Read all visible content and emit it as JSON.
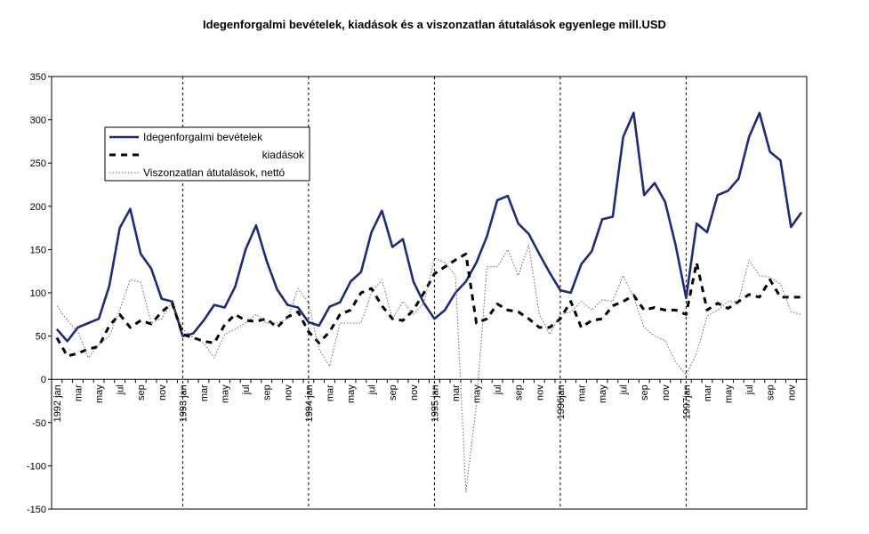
{
  "chart_data": {
    "type": "line",
    "title": "Idegenforgalmi bevételek, kiadások és a viszonzatlan átutalások egyenlege mill.USD",
    "xlabel": "",
    "ylabel": "",
    "ylim": [
      -150,
      350
    ],
    "yticks": [
      350,
      300,
      250,
      200,
      150,
      100,
      50,
      0,
      -50,
      -100,
      -150
    ],
    "grid": false,
    "legend_position": "upper-left",
    "x_tick_labels": [
      "1992 jan",
      "mar",
      "may",
      "jul",
      "sep",
      "nov",
      "1993 jan",
      "mar",
      "may",
      "jul",
      "sep",
      "nov",
      "1994 jan",
      "mar",
      "may",
      "jul",
      "sep",
      "nov",
      "1995 jan",
      "mar",
      "may",
      "jul",
      "sep",
      "nov",
      "1996jan",
      "mar",
      "may",
      "jul",
      "sep",
      "nov",
      "1997jan",
      "mar",
      "may",
      "jul",
      "sep",
      "nov"
    ],
    "year_separators": [
      "1993 jan",
      "1994 jan",
      "1995 jan",
      "1996jan",
      "1997jan"
    ],
    "series": [
      {
        "name": "Idegenforgalmi bevételek",
        "color": "#1f2a7a",
        "style": "solid",
        "values": [
          58,
          44,
          60,
          65,
          70,
          108,
          175,
          197,
          145,
          128,
          93,
          90,
          50,
          53,
          68,
          86,
          83,
          107,
          150,
          178,
          137,
          104,
          86,
          83,
          66,
          62,
          84,
          89,
          113,
          124,
          170,
          195,
          153,
          162,
          113,
          88,
          70,
          80,
          100,
          113,
          135,
          165,
          207,
          212,
          180,
          168,
          145,
          123,
          103,
          100,
          133,
          148,
          185,
          188,
          280,
          308,
          213,
          227,
          205,
          155,
          94,
          180,
          170,
          213,
          218,
          232,
          280,
          308,
          263,
          253,
          176,
          193
        ]
      },
      {
        "name": "kiadások",
        "color": "#000000",
        "style": "dashed",
        "values": [
          48,
          27,
          30,
          35,
          38,
          62,
          75,
          60,
          68,
          64,
          78,
          88,
          52,
          48,
          44,
          42,
          63,
          75,
          68,
          67,
          70,
          60,
          72,
          78,
          55,
          42,
          55,
          75,
          80,
          100,
          105,
          85,
          70,
          68,
          80,
          100,
          122,
          130,
          138,
          145,
          65,
          70,
          87,
          80,
          78,
          70,
          60,
          60,
          70,
          90,
          60,
          68,
          70,
          85,
          90,
          97,
          80,
          83,
          80,
          80,
          75,
          135,
          80,
          88,
          82,
          90,
          98,
          95,
          115,
          95,
          95,
          95
        ]
      },
      {
        "name": "Viszonzatlan átutalások, nettó",
        "color": "#666666",
        "style": "dotted",
        "values": [
          85,
          68,
          55,
          25,
          40,
          50,
          80,
          115,
          112,
          65,
          70,
          90,
          58,
          48,
          42,
          25,
          52,
          58,
          65,
          75,
          65,
          65,
          70,
          105,
          88,
          35,
          15,
          65,
          65,
          65,
          100,
          115,
          70,
          90,
          75,
          88,
          140,
          135,
          120,
          -130,
          -30,
          130,
          130,
          150,
          120,
          155,
          75,
          52,
          75,
          78,
          90,
          80,
          92,
          90,
          120,
          95,
          60,
          50,
          45,
          20,
          5,
          30,
          73,
          80,
          90,
          90,
          138,
          120,
          118,
          110,
          78,
          75
        ]
      }
    ]
  }
}
